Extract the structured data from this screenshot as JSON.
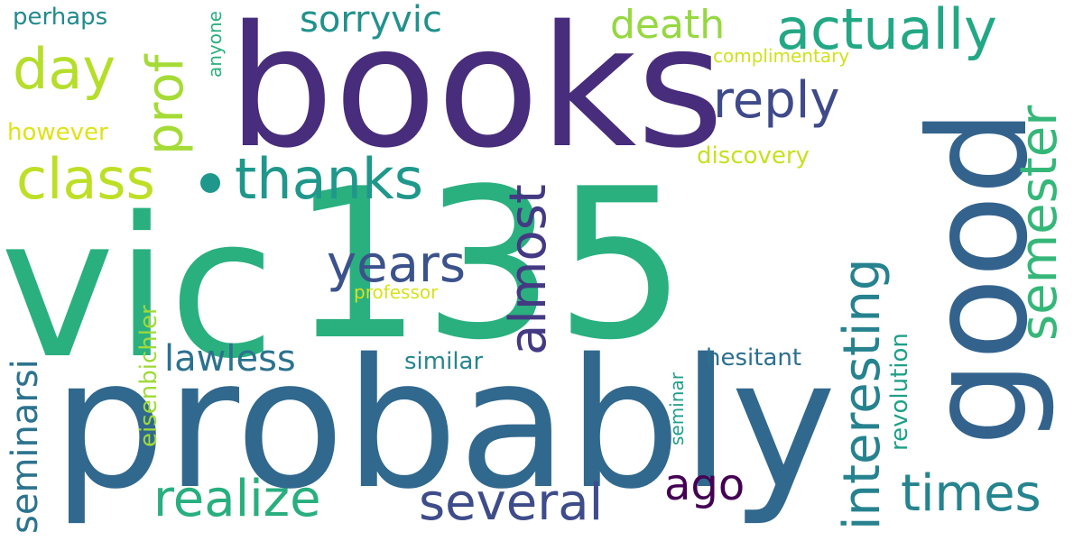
{
  "words": [
    {
      "text": "vic",
      "color": "#2ab07f"
    },
    {
      "text": "135",
      "color": "#2ab07f"
    },
    {
      "text": "books",
      "color": "#472d7b"
    },
    {
      "text": "probably",
      "color": "#31688e"
    },
    {
      "text": "good",
      "color": "#33638d"
    },
    {
      "text": "actually",
      "color": "#22a884"
    },
    {
      "text": "thanks",
      "color": "#1f988b"
    },
    {
      "text": "class",
      "color": "#bddf26"
    },
    {
      "text": "day",
      "color": "#b5de2b"
    },
    {
      "text": "prof",
      "color": "#a5db36"
    },
    {
      "text": "reply",
      "color": "#3e4a89"
    },
    {
      "text": "sorryvic",
      "color": "#21918c"
    },
    {
      "text": "death",
      "color": "#95d840"
    },
    {
      "text": "perhaps",
      "color": "#238a8d"
    },
    {
      "text": "anyone",
      "color": "#2ab07f"
    },
    {
      "text": "complimentary",
      "color": "#d0e11c"
    },
    {
      "text": "discovery",
      "color": "#c8e020"
    },
    {
      "text": "however",
      "color": "#dde318"
    },
    {
      "text": "interesting",
      "color": "#26828e"
    },
    {
      "text": "semester",
      "color": "#35b779"
    },
    {
      "text": "years",
      "color": "#3b528b"
    },
    {
      "text": "almost",
      "color": "#443983"
    },
    {
      "text": "professor",
      "color": "#d8e219"
    },
    {
      "text": "lawless",
      "color": "#2c728e"
    },
    {
      "text": "similar",
      "color": "#25858e"
    },
    {
      "text": "hesitant",
      "color": "#2d708e"
    },
    {
      "text": "revolution",
      "color": "#1fa088"
    },
    {
      "text": "eisenbichler",
      "color": "#a0da39"
    },
    {
      "text": "seminarsi",
      "color": "#2c738e"
    },
    {
      "text": "seminar",
      "color": "#1f9e89"
    },
    {
      "text": "realize",
      "color": "#29af7f"
    },
    {
      "text": "several",
      "color": "#3e4c8a"
    },
    {
      "text": "ago",
      "color": "#440154"
    },
    {
      "text": "times",
      "color": "#25848e"
    }
  ]
}
